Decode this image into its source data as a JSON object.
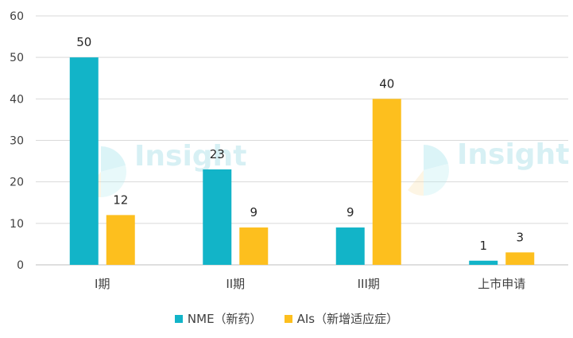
{
  "chart_data": {
    "type": "bar",
    "categories": [
      "I期",
      "II期",
      "III期",
      "上市申请"
    ],
    "series": [
      {
        "name": "NME（新药）",
        "values": [
          50,
          23,
          9,
          1
        ],
        "color": "#12B4C8"
      },
      {
        "name": "AIs（新增适应症）",
        "values": [
          12,
          9,
          40,
          3
        ],
        "color": "#FDBF1E"
      }
    ],
    "ylim": [
      0,
      60
    ],
    "yticks": [
      0,
      10,
      20,
      30,
      40,
      50,
      60
    ],
    "grid": true,
    "legend": "bottom",
    "title": "",
    "xlabel": "",
    "ylabel": ""
  },
  "watermark": {
    "text": "Insight"
  }
}
